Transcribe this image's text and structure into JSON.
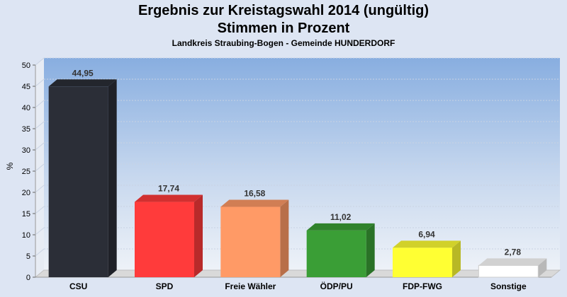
{
  "chart_data": {
    "type": "bar",
    "title": "Ergebnis zur Kreistagswahl 2014 (ungültig)",
    "title2": "Stimmen in Prozent",
    "subtitle": "Landkreis Straubing-Bogen - Gemeinde HUNDERDORF",
    "ylabel": "%",
    "xlabel": "",
    "ylim": [
      0,
      50
    ],
    "yticks": [
      0,
      5,
      10,
      15,
      20,
      25,
      30,
      35,
      40,
      45,
      50
    ],
    "categories": [
      "CSU",
      "SPD",
      "Freie Wähler",
      "ÖDP/PU",
      "FDP-FWG",
      "Sonstige"
    ],
    "values": [
      44.95,
      17.74,
      16.58,
      11.02,
      6.94,
      2.78
    ],
    "value_labels": [
      "44,95",
      "17,74",
      "16,58",
      "11,02",
      "6,94",
      "2,78"
    ],
    "colors": [
      "#2b2e37",
      "#ff3b3b",
      "#ff9a66",
      "#3a9e36",
      "#ffff33",
      "#ffffff"
    ],
    "grid": true,
    "legend": "none"
  }
}
